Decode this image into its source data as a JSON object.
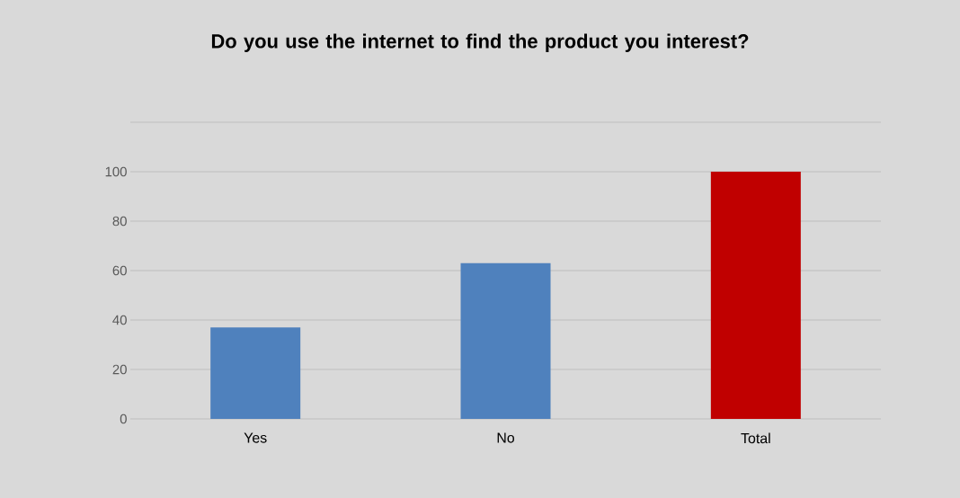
{
  "chart_data": {
    "type": "bar",
    "title": "Do you use the internet to find the product you interest?",
    "categories": [
      "Yes",
      "No",
      "Total"
    ],
    "values": [
      37,
      63,
      100
    ],
    "colors": [
      "#4f81bd",
      "#4f81bd",
      "#c00000"
    ],
    "ylim": [
      0,
      120
    ],
    "yticks": [
      0,
      20,
      40,
      60,
      80,
      100,
      {
        "value": 120,
        "label": null
      }
    ],
    "grid": "y"
  }
}
